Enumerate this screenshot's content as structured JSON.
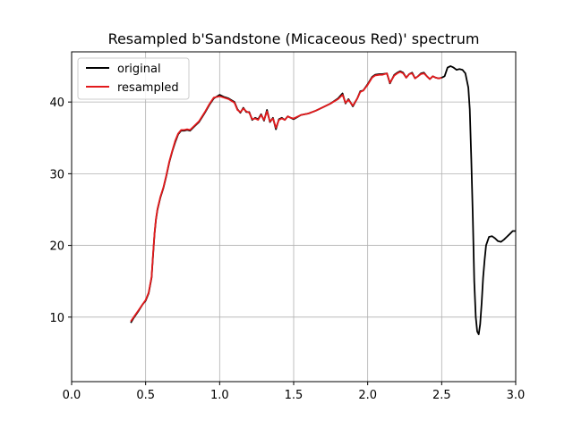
{
  "chart_data": {
    "type": "line",
    "title": "Resampled b'Sandstone (Micaceous Red)' spectrum",
    "xlabel": "",
    "ylabel": "",
    "xlim": [
      0.0,
      3.0
    ],
    "ylim": [
      1.0,
      47.0
    ],
    "xticks": [
      "0.0",
      "0.5",
      "1.0",
      "1.5",
      "2.0",
      "2.5",
      "3.0"
    ],
    "xtick_values": [
      0.0,
      0.5,
      1.0,
      1.5,
      2.0,
      2.5,
      3.0
    ],
    "yticks": [
      "10",
      "20",
      "30",
      "40"
    ],
    "ytick_values": [
      10,
      20,
      30,
      40
    ],
    "grid": true,
    "legend_position": "top-left",
    "series": [
      {
        "name": "original",
        "color": "#000000",
        "x": [
          0.4,
          0.42,
          0.45,
          0.48,
          0.5,
          0.52,
          0.54,
          0.55,
          0.56,
          0.57,
          0.58,
          0.6,
          0.62,
          0.64,
          0.66,
          0.68,
          0.7,
          0.72,
          0.74,
          0.76,
          0.78,
          0.8,
          0.83,
          0.86,
          0.9,
          0.93,
          0.96,
          1.0,
          1.03,
          1.06,
          1.1,
          1.12,
          1.14,
          1.16,
          1.18,
          1.2,
          1.22,
          1.24,
          1.26,
          1.28,
          1.3,
          1.32,
          1.34,
          1.36,
          1.38,
          1.4,
          1.42,
          1.44,
          1.46,
          1.48,
          1.5,
          1.55,
          1.6,
          1.65,
          1.7,
          1.75,
          1.8,
          1.83,
          1.85,
          1.87,
          1.9,
          1.93,
          1.95,
          1.97,
          2.0,
          2.03,
          2.05,
          2.08,
          2.1,
          2.13,
          2.15,
          2.18,
          2.2,
          2.22,
          2.24,
          2.26,
          2.28,
          2.3,
          2.32,
          2.34,
          2.36,
          2.38,
          2.4,
          2.42,
          2.44,
          2.46,
          2.48,
          2.5,
          2.52,
          2.54,
          2.56,
          2.58,
          2.6,
          2.62,
          2.64,
          2.66,
          2.68,
          2.69,
          2.7,
          2.71,
          2.72,
          2.73,
          2.74,
          2.75,
          2.76,
          2.77,
          2.78,
          2.79,
          2.8,
          2.82,
          2.84,
          2.86,
          2.88,
          2.9,
          2.92,
          2.94,
          2.96,
          2.98,
          3.0
        ],
        "y": [
          9.2,
          9.9,
          10.8,
          11.8,
          12.3,
          13.3,
          15.5,
          18.5,
          21.6,
          23.6,
          25.0,
          26.7,
          28.0,
          29.7,
          31.6,
          33.1,
          34.4,
          35.5,
          36.0,
          36.0,
          36.1,
          36.0,
          36.6,
          37.2,
          38.5,
          39.6,
          40.5,
          41.0,
          40.7,
          40.5,
          40.0,
          39.0,
          38.5,
          39.2,
          38.6,
          38.6,
          37.5,
          37.8,
          37.6,
          38.3,
          37.4,
          38.9,
          37.2,
          37.8,
          36.2,
          37.6,
          37.8,
          37.5,
          38.0,
          37.8,
          37.6,
          38.2,
          38.4,
          38.8,
          39.3,
          39.8,
          40.5,
          41.2,
          39.8,
          40.4,
          39.4,
          40.5,
          41.5,
          41.6,
          42.5,
          43.5,
          43.8,
          43.9,
          43.9,
          44.0,
          42.6,
          43.8,
          44.1,
          44.3,
          44.1,
          43.4,
          43.9,
          44.1,
          43.3,
          43.6,
          44.0,
          44.1,
          43.6,
          43.2,
          43.6,
          43.4,
          43.3,
          43.4,
          43.6,
          44.8,
          45.0,
          44.8,
          44.5,
          44.6,
          44.5,
          44.0,
          42.0,
          39.0,
          32.0,
          24.0,
          15.0,
          10.0,
          8.0,
          7.6,
          9.0,
          12.0,
          15.5,
          18.0,
          20.0,
          21.2,
          21.3,
          21.0,
          20.6,
          20.5,
          20.8,
          21.2,
          21.6,
          22.0,
          22.0
        ]
      },
      {
        "name": "resampled",
        "color": "#e31a1c",
        "x": [
          0.4,
          0.42,
          0.45,
          0.48,
          0.5,
          0.52,
          0.54,
          0.55,
          0.56,
          0.57,
          0.58,
          0.6,
          0.62,
          0.64,
          0.66,
          0.68,
          0.7,
          0.72,
          0.74,
          0.76,
          0.78,
          0.8,
          0.83,
          0.86,
          0.9,
          0.93,
          0.96,
          1.0,
          1.03,
          1.06,
          1.1,
          1.12,
          1.14,
          1.16,
          1.18,
          1.2,
          1.22,
          1.24,
          1.26,
          1.28,
          1.3,
          1.32,
          1.34,
          1.36,
          1.38,
          1.4,
          1.42,
          1.44,
          1.46,
          1.48,
          1.5,
          1.55,
          1.6,
          1.65,
          1.7,
          1.75,
          1.8,
          1.83,
          1.85,
          1.87,
          1.9,
          1.93,
          1.95,
          1.97,
          2.0,
          2.03,
          2.05,
          2.08,
          2.1,
          2.13,
          2.15,
          2.18,
          2.2,
          2.22,
          2.24,
          2.26,
          2.28,
          2.3,
          2.32,
          2.34,
          2.36,
          2.38,
          2.4,
          2.42,
          2.44,
          2.46,
          2.48,
          2.5
        ],
        "y": [
          9.4,
          10.0,
          10.9,
          11.8,
          12.4,
          13.4,
          15.6,
          18.7,
          21.7,
          23.7,
          25.1,
          26.8,
          28.1,
          29.8,
          31.7,
          33.2,
          34.6,
          35.6,
          36.1,
          36.1,
          36.2,
          36.1,
          36.7,
          37.3,
          38.6,
          39.7,
          40.6,
          40.8,
          40.6,
          40.4,
          39.9,
          38.9,
          38.6,
          39.1,
          38.7,
          38.5,
          37.6,
          37.7,
          37.5,
          38.2,
          37.5,
          38.7,
          37.3,
          37.7,
          36.4,
          37.5,
          37.7,
          37.5,
          38.0,
          37.8,
          37.7,
          38.2,
          38.4,
          38.8,
          39.3,
          39.8,
          40.4,
          41.0,
          39.9,
          40.3,
          39.5,
          40.5,
          41.4,
          41.6,
          42.4,
          43.4,
          43.7,
          43.8,
          43.8,
          44.0,
          42.7,
          43.7,
          44.0,
          44.2,
          44.0,
          43.4,
          43.9,
          44.0,
          43.3,
          43.6,
          43.9,
          44.0,
          43.6,
          43.2,
          43.6,
          43.4,
          43.3,
          43.4
        ]
      }
    ]
  }
}
